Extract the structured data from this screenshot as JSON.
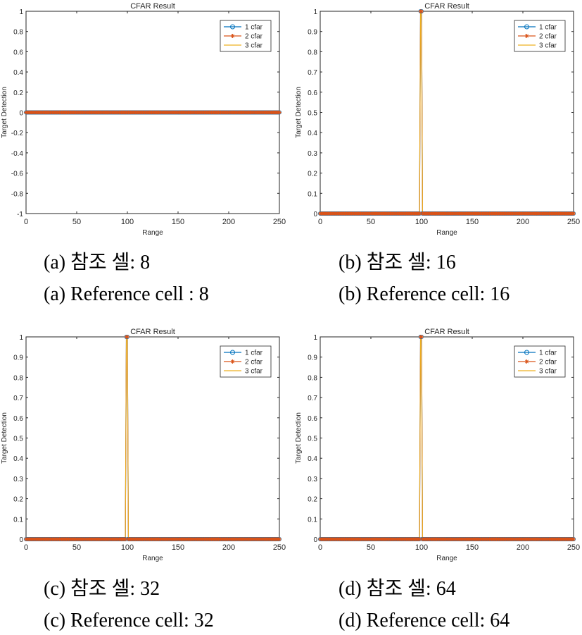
{
  "series_style": [
    {
      "color": "#0072BD",
      "marker": "circle"
    },
    {
      "color": "#D95319",
      "marker": "asterisk"
    },
    {
      "color": "#EDB120",
      "marker": "none"
    }
  ],
  "chart_data": [
    {
      "type": "line",
      "title": "CFAR Result",
      "xlabel": "Range",
      "ylabel": "Target Detection",
      "xlim": [
        0,
        250
      ],
      "ylim": [
        -1,
        1
      ],
      "xticks": [
        "0",
        "50",
        "100",
        "150",
        "200",
        "250"
      ],
      "yticks": [
        "-1",
        "-0.8",
        "-0.6",
        "-0.4",
        "-0.2",
        "0",
        "0.2",
        "0.4",
        "0.6",
        "0.8",
        "1"
      ],
      "legend": [
        "1 cfar",
        "2 cfar",
        "3 cfar"
      ],
      "legend_position": "top-right",
      "x_range": [
        0,
        250
      ],
      "series": [
        {
          "name": "1 cfar",
          "detections": [],
          "baseline": 0
        },
        {
          "name": "2 cfar",
          "detections": [],
          "baseline": 0
        },
        {
          "name": "3 cfar",
          "detections": [],
          "baseline": 0
        }
      ],
      "caption_ko": "(a) 참조 셀: 8",
      "caption_en": "(a) Reference cell : 8"
    },
    {
      "type": "line",
      "title": "CFAR Result",
      "xlabel": "Range",
      "ylabel": "Target Detection",
      "xlim": [
        0,
        250
      ],
      "ylim": [
        0,
        1
      ],
      "xticks": [
        "0",
        "50",
        "100",
        "150",
        "200",
        "250"
      ],
      "yticks": [
        "0",
        "0.1",
        "0.2",
        "0.3",
        "0.4",
        "0.5",
        "0.6",
        "0.7",
        "0.8",
        "0.9",
        "1"
      ],
      "legend": [
        "1 cfar",
        "2 cfar",
        "3 cfar"
      ],
      "legend_position": "top-right",
      "x_range": [
        0,
        250
      ],
      "series": [
        {
          "name": "1 cfar",
          "detections": [
            99,
            100
          ],
          "baseline": 0
        },
        {
          "name": "2 cfar",
          "detections": [
            99,
            100
          ],
          "baseline": 0
        },
        {
          "name": "3 cfar",
          "detections": [
            99,
            100
          ],
          "baseline": 0
        }
      ],
      "caption_ko": "(b) 참조 셀: 16",
      "caption_en": "(b) Reference cell: 16"
    },
    {
      "type": "line",
      "title": "CFAR Result",
      "xlabel": "Range",
      "ylabel": "Target Detection",
      "xlim": [
        0,
        250
      ],
      "ylim": [
        0,
        1
      ],
      "xticks": [
        "0",
        "50",
        "100",
        "150",
        "200",
        "250"
      ],
      "yticks": [
        "0",
        "0.1",
        "0.2",
        "0.3",
        "0.4",
        "0.5",
        "0.6",
        "0.7",
        "0.8",
        "0.9",
        "1"
      ],
      "legend": [
        "1 cfar",
        "2 cfar",
        "3 cfar"
      ],
      "legend_position": "top-right",
      "x_range": [
        0,
        250
      ],
      "series": [
        {
          "name": "1 cfar",
          "detections": [
            99,
            100
          ],
          "baseline": 0
        },
        {
          "name": "2 cfar",
          "detections": [
            99,
            100
          ],
          "baseline": 0
        },
        {
          "name": "3 cfar",
          "detections": [
            99,
            100
          ],
          "baseline": 0
        }
      ],
      "caption_ko": "(c) 참조 셀: 32",
      "caption_en": "(c) Reference cell: 32"
    },
    {
      "type": "line",
      "title": "CFAR Result",
      "xlabel": "Range",
      "ylabel": "Target Detection",
      "xlim": [
        0,
        250
      ],
      "ylim": [
        0,
        1
      ],
      "xticks": [
        "0",
        "50",
        "100",
        "150",
        "200",
        "250"
      ],
      "yticks": [
        "0",
        "0.1",
        "0.2",
        "0.3",
        "0.4",
        "0.5",
        "0.6",
        "0.7",
        "0.8",
        "0.9",
        "1"
      ],
      "legend": [
        "1 cfar",
        "2 cfar",
        "3 cfar"
      ],
      "legend_position": "top-right",
      "x_range": [
        0,
        250
      ],
      "series": [
        {
          "name": "1 cfar",
          "detections": [
            99,
            100
          ],
          "baseline": 0
        },
        {
          "name": "2 cfar",
          "detections": [
            99,
            100
          ],
          "baseline": 0
        },
        {
          "name": "3 cfar",
          "detections": [
            99,
            100
          ],
          "baseline": 0
        }
      ],
      "caption_ko": "(d) 참조 셀: 64",
      "caption_en": "(d) Reference cell: 64"
    }
  ]
}
